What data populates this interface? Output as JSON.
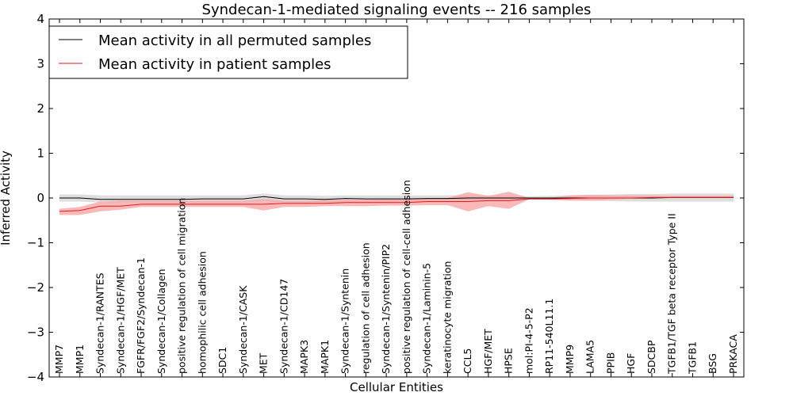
{
  "chart_data": {
    "type": "line",
    "title": "Syndecan-1-mediated signaling events -- 216 samples",
    "xlabel": "Cellular Entities",
    "ylabel": "Inferred Activity",
    "ylim": [
      -4,
      4
    ],
    "yticks": [
      4,
      3,
      2,
      1,
      0,
      -1,
      -2,
      -3,
      -4
    ],
    "ytick_labels": [
      "4",
      "3",
      "2",
      "1",
      "0",
      "−1",
      "−2",
      "−3",
      "−4"
    ],
    "legend_position": "top-left",
    "categories": [
      "MMP7",
      "MMP1",
      "Syndecan-1/RANTES",
      "Syndecan-1/HGF/MET",
      "FGFR/FGF2/Syndecan-1",
      "Syndecan-1/Collagen",
      "positive regulation of cell migration",
      "homophilic cell adhesion",
      "SDC1",
      "Syndecan-1/CASK",
      "MET",
      "Syndecan-1/CD147",
      "MAPK3",
      "MAPK1",
      "Syndecan-1/Syntenin",
      "regulation of cell adhesion",
      "Syndecan-1/Syntenin/PIP2",
      "positive regulation of cell-cell adhesion",
      "Syndecan-1/Laminin-5",
      "keratinocyte migration",
      "CCL5",
      "HGF/MET",
      "HPSE",
      "mol:PI-4-5-P2",
      "RP11-540L11.1",
      "MMP9",
      "LAMA5",
      "PPIB",
      "HGF",
      "SDCBP",
      "TGFB1/TGF beta receptor Type II",
      "TGFB1",
      "BSG",
      "PRKACA"
    ],
    "series": [
      {
        "name": "Mean activity in all permuted samples",
        "color": "#000000",
        "band_color": "#c8c8c8",
        "values": [
          0.0,
          0.0,
          -0.03,
          -0.03,
          -0.03,
          -0.03,
          -0.03,
          -0.02,
          -0.02,
          -0.02,
          0.03,
          -0.02,
          -0.02,
          -0.03,
          -0.01,
          -0.02,
          -0.02,
          -0.02,
          -0.01,
          -0.01,
          0.0,
          0.0,
          0.0,
          0.0,
          0.0,
          0.0,
          0.0,
          0.0,
          0.0,
          0.0,
          0.01,
          0.01,
          0.01,
          0.01
        ],
        "lower": [
          -0.08,
          -0.08,
          -0.1,
          -0.1,
          -0.1,
          -0.1,
          -0.1,
          -0.1,
          -0.1,
          -0.1,
          -0.06,
          -0.1,
          -0.1,
          -0.1,
          -0.09,
          -0.1,
          -0.1,
          -0.1,
          -0.09,
          -0.09,
          -0.07,
          -0.06,
          -0.05,
          -0.04,
          -0.05,
          -0.05,
          -0.06,
          -0.07,
          -0.08,
          -0.08,
          -0.08,
          -0.08,
          -0.08,
          -0.08
        ],
        "upper": [
          0.08,
          0.08,
          0.06,
          0.06,
          0.06,
          0.06,
          0.06,
          0.06,
          0.06,
          0.06,
          0.1,
          0.06,
          0.06,
          0.05,
          0.06,
          0.06,
          0.06,
          0.06,
          0.06,
          0.06,
          0.06,
          0.06,
          0.05,
          0.04,
          0.05,
          0.06,
          0.07,
          0.08,
          0.09,
          0.09,
          0.1,
          0.1,
          0.1,
          0.1
        ]
      },
      {
        "name": "Mean activity in patient samples",
        "color": "#e31a1c",
        "band_color": "#f7a1a1",
        "values": [
          -0.3,
          -0.28,
          -0.18,
          -0.18,
          -0.14,
          -0.14,
          -0.14,
          -0.14,
          -0.14,
          -0.14,
          -0.14,
          -0.12,
          -0.12,
          -0.12,
          -0.1,
          -0.1,
          -0.1,
          -0.1,
          -0.08,
          -0.08,
          -0.08,
          -0.06,
          -0.06,
          -0.02,
          -0.02,
          -0.01,
          0.0,
          0.0,
          0.0,
          0.01,
          0.01,
          0.01,
          0.01,
          0.01
        ],
        "lower": [
          -0.38,
          -0.38,
          -0.3,
          -0.26,
          -0.2,
          -0.2,
          -0.2,
          -0.2,
          -0.2,
          -0.2,
          -0.28,
          -0.2,
          -0.2,
          -0.18,
          -0.18,
          -0.18,
          -0.17,
          -0.17,
          -0.16,
          -0.16,
          -0.3,
          -0.18,
          -0.24,
          -0.03,
          -0.03,
          -0.06,
          -0.06,
          -0.04,
          -0.02,
          -0.01,
          0.0,
          0.0,
          0.0,
          0.0
        ],
        "upper": [
          -0.24,
          -0.2,
          -0.08,
          -0.06,
          -0.06,
          -0.06,
          -0.06,
          -0.06,
          -0.06,
          -0.06,
          -0.02,
          -0.06,
          -0.06,
          -0.04,
          -0.04,
          -0.04,
          -0.03,
          -0.03,
          0.0,
          0.0,
          0.13,
          0.05,
          0.14,
          0.0,
          0.0,
          0.06,
          0.07,
          0.06,
          0.06,
          0.06,
          0.05,
          0.05,
          0.05,
          0.05
        ]
      }
    ]
  }
}
